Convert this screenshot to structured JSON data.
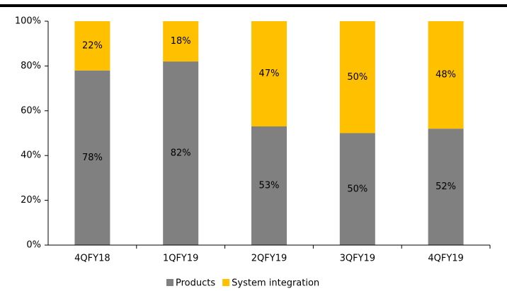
{
  "chart_data": {
    "type": "stacked_bar",
    "categories": [
      "4QFY18",
      "1QFY19",
      "2QFY19",
      "3QFY19",
      "4QFY19"
    ],
    "series": [
      {
        "name": "Products",
        "color": "#808080",
        "values": [
          78,
          82,
          53,
          50,
          52
        ],
        "value_labels": [
          "78%",
          "82%",
          "53%",
          "50%",
          "52%"
        ]
      },
      {
        "name": "System integration",
        "color": "#ffc000",
        "values": [
          22,
          18,
          47,
          50,
          48
        ],
        "value_labels": [
          "22%",
          "18%",
          "47%",
          "50%",
          "48%"
        ]
      }
    ],
    "ylim": [
      0,
      100
    ],
    "yticks": [
      {
        "value": 0,
        "label": "0%"
      },
      {
        "value": 20,
        "label": "20%"
      },
      {
        "value": 40,
        "label": "40%"
      },
      {
        "value": 60,
        "label": "60%"
      },
      {
        "value": 80,
        "label": "80%"
      },
      {
        "value": 100,
        "label": "100%"
      }
    ],
    "grid": false,
    "legend": "bottom"
  }
}
